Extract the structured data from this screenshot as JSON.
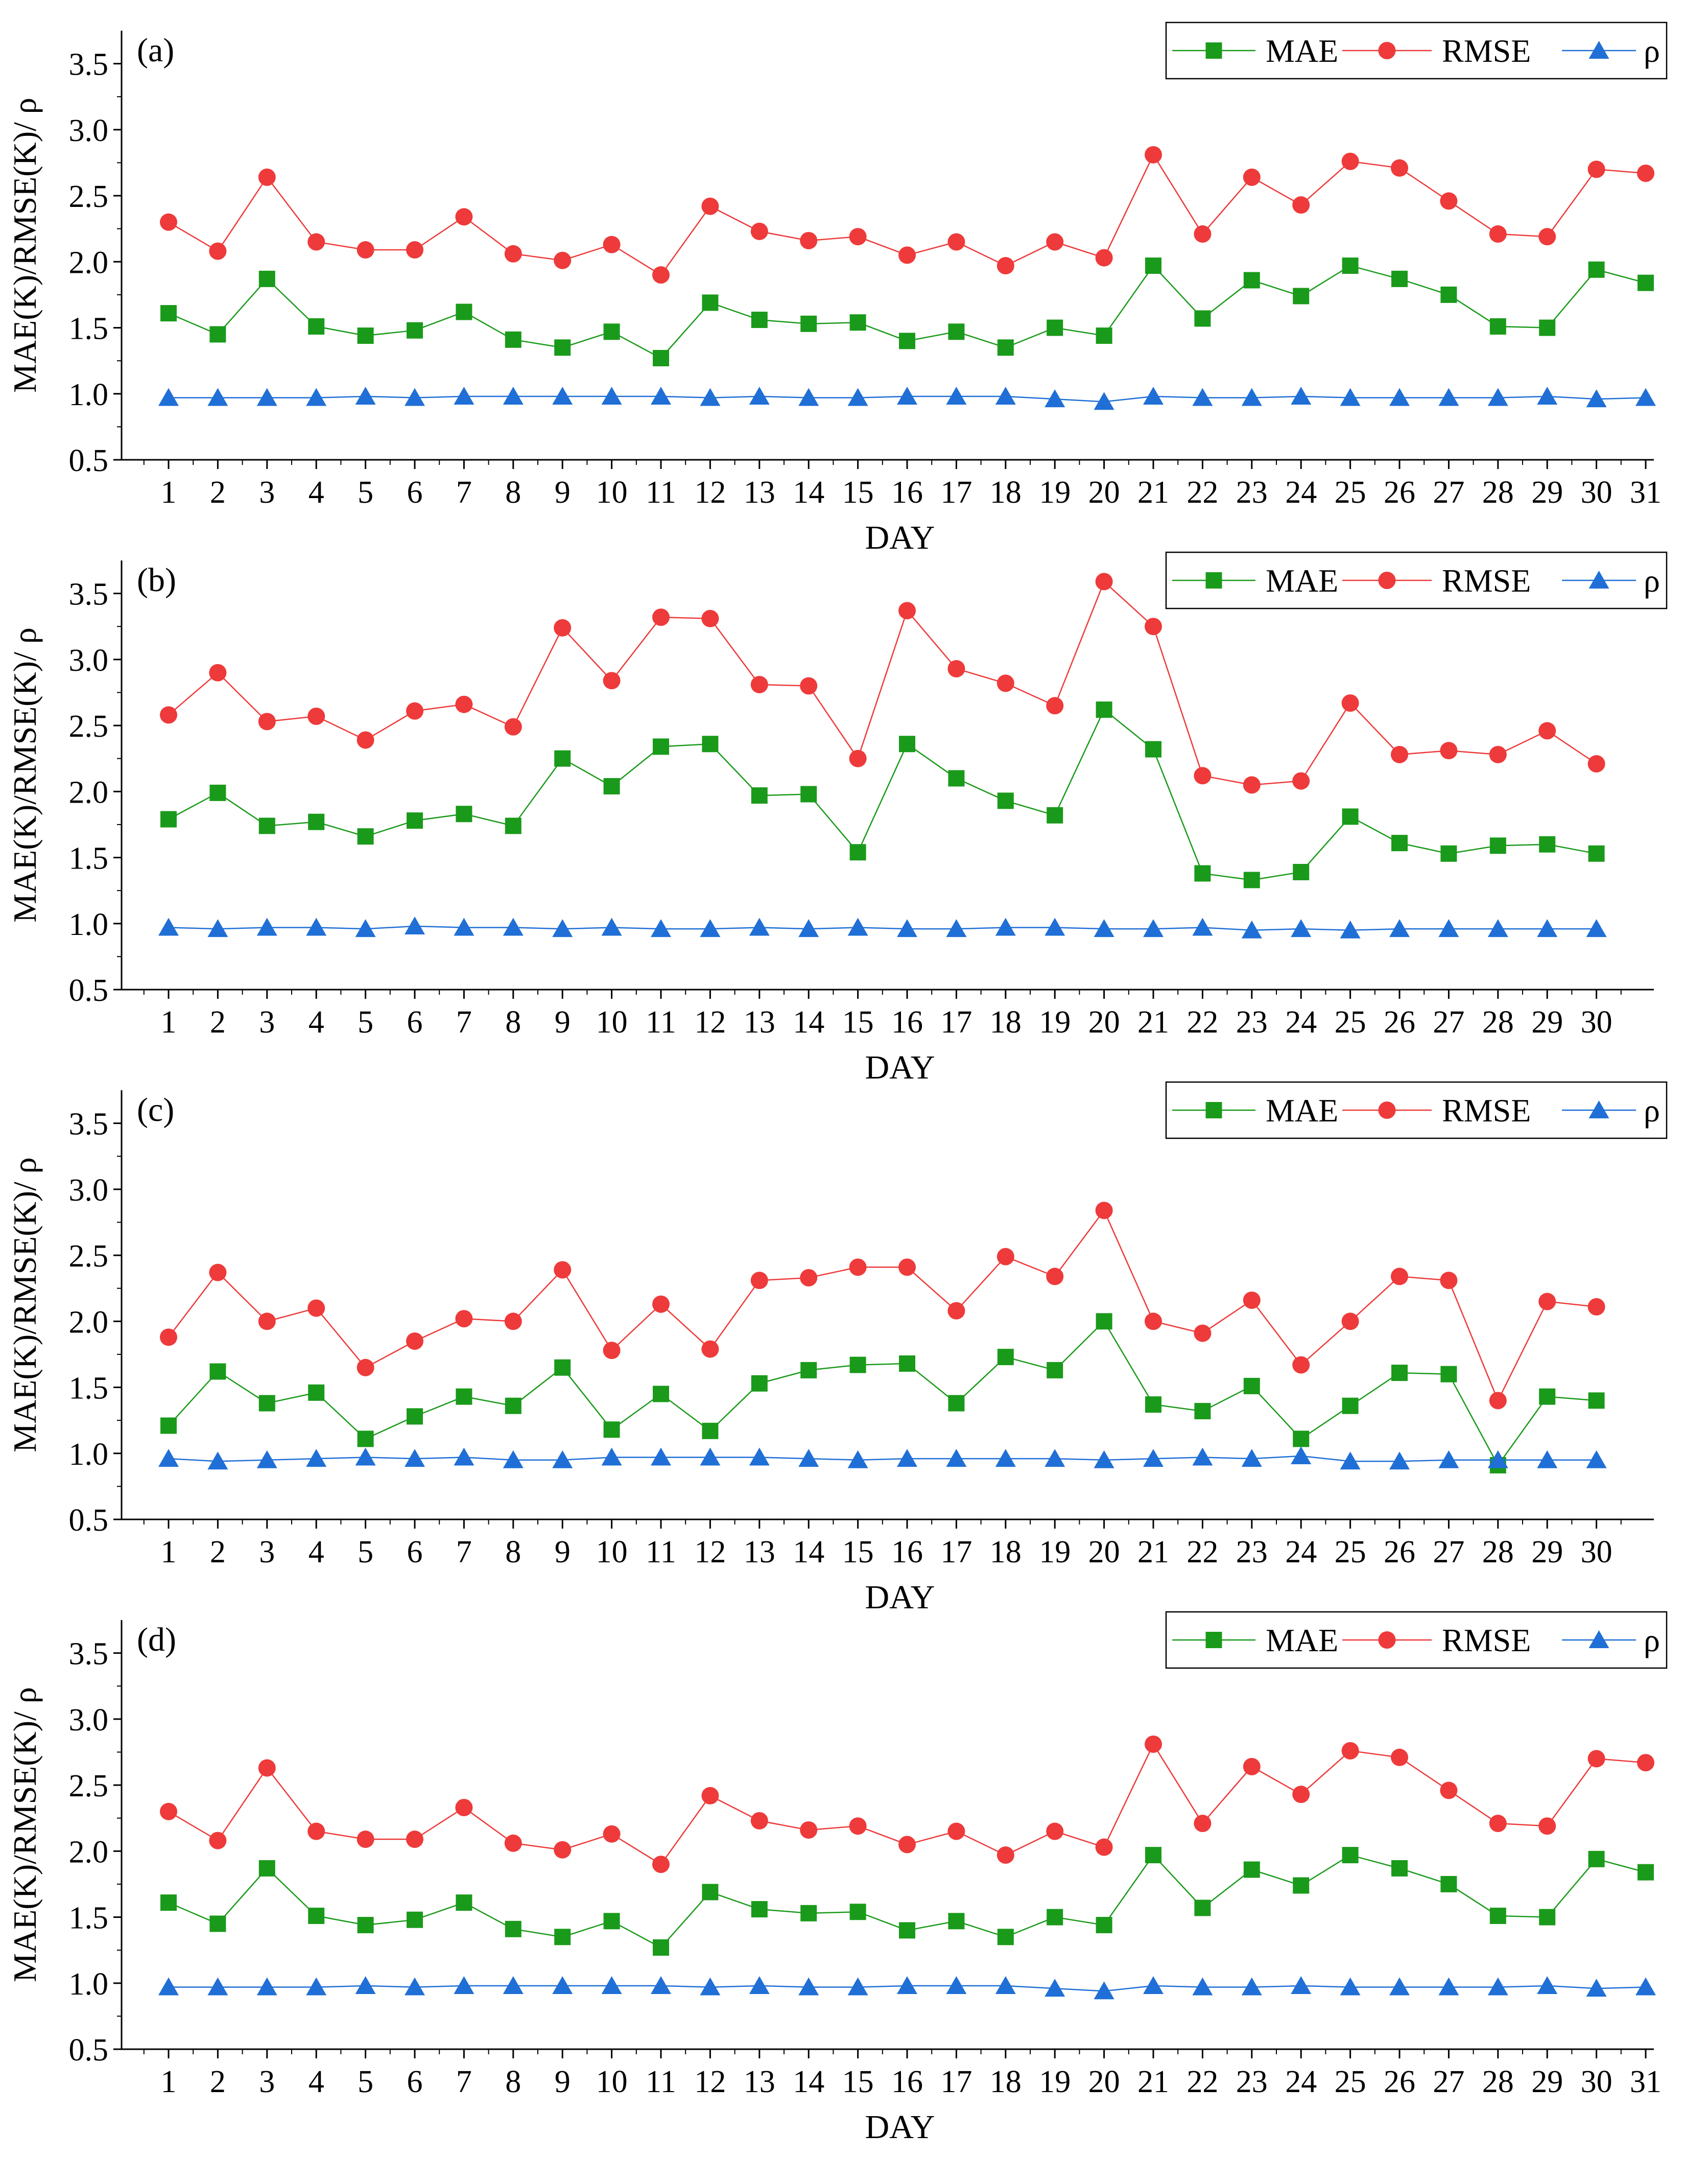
{
  "chart_data": [
    {
      "type": "line",
      "panel_label": "(a)",
      "xlabel": "DAY",
      "ylabel": "MAE(K)/RMSE(K)/ ρ",
      "ylim": [
        0.5,
        3.75
      ],
      "yticks": [
        "0.5",
        "1.0",
        "1.5",
        "2.0",
        "2.5",
        "3.0",
        "3.5"
      ],
      "x": [
        1,
        2,
        3,
        4,
        5,
        6,
        7,
        8,
        9,
        10,
        11,
        12,
        13,
        14,
        15,
        16,
        17,
        18,
        19,
        20,
        21,
        22,
        23,
        24,
        25,
        26,
        27,
        28,
        29,
        30,
        31
      ],
      "series": [
        {
          "name": "MAE",
          "color": "#1a9a1a",
          "marker": "square",
          "values": [
            1.61,
            1.45,
            1.87,
            1.51,
            1.44,
            1.48,
            1.62,
            1.41,
            1.35,
            1.47,
            1.27,
            1.69,
            1.56,
            1.53,
            1.54,
            1.4,
            1.47,
            1.35,
            1.5,
            1.44,
            1.97,
            1.57,
            1.86,
            1.74,
            1.97,
            1.87,
            1.75,
            1.51,
            1.5,
            1.94,
            1.84
          ]
        },
        {
          "name": "RMSE",
          "color": "#ee3a3a",
          "marker": "circle",
          "values": [
            2.3,
            2.08,
            2.64,
            2.15,
            2.09,
            2.09,
            2.34,
            2.06,
            2.01,
            2.13,
            1.9,
            2.42,
            2.23,
            2.16,
            2.19,
            2.05,
            2.15,
            1.97,
            2.15,
            2.03,
            2.81,
            2.21,
            2.64,
            2.43,
            2.76,
            2.71,
            2.46,
            2.21,
            2.19,
            2.7,
            2.67
          ]
        },
        {
          "name": "ρ",
          "color": "#1f6fd6",
          "marker": "triangle",
          "values": [
            0.97,
            0.97,
            0.97,
            0.97,
            0.98,
            0.97,
            0.98,
            0.98,
            0.98,
            0.98,
            0.98,
            0.97,
            0.98,
            0.97,
            0.97,
            0.98,
            0.98,
            0.98,
            0.96,
            0.94,
            0.98,
            0.97,
            0.97,
            0.98,
            0.97,
            0.97,
            0.97,
            0.97,
            0.98,
            0.96,
            0.97
          ]
        }
      ],
      "legend": "top-right"
    },
    {
      "type": "line",
      "panel_label": "(b)",
      "xlabel": "DAY",
      "ylabel": "MAE(K)/RMSE(K)/ ρ",
      "ylim": [
        0.5,
        3.75
      ],
      "yticks": [
        "0.5",
        "1.0",
        "1.5",
        "2.0",
        "2.5",
        "3.0",
        "3.5"
      ],
      "x": [
        1,
        2,
        3,
        4,
        5,
        6,
        7,
        8,
        9,
        10,
        11,
        12,
        13,
        14,
        15,
        16,
        17,
        18,
        19,
        20,
        21,
        22,
        23,
        24,
        25,
        26,
        27,
        28,
        29,
        30
      ],
      "series": [
        {
          "name": "MAE",
          "color": "#1a9a1a",
          "marker": "square",
          "values": [
            1.79,
            1.99,
            1.74,
            1.77,
            1.66,
            1.78,
            1.83,
            1.74,
            2.25,
            2.04,
            2.34,
            2.36,
            1.97,
            1.98,
            1.54,
            2.36,
            2.1,
            1.93,
            1.82,
            2.62,
            2.32,
            1.38,
            1.33,
            1.39,
            1.81,
            1.61,
            1.53,
            1.59,
            1.6,
            1.53
          ]
        },
        {
          "name": "RMSE",
          "color": "#ee3a3a",
          "marker": "circle",
          "values": [
            2.58,
            2.9,
            2.53,
            2.57,
            2.39,
            2.61,
            2.66,
            2.49,
            3.24,
            2.84,
            3.32,
            3.31,
            2.81,
            2.8,
            2.25,
            3.37,
            2.93,
            2.82,
            2.65,
            3.59,
            3.25,
            2.12,
            2.05,
            2.08,
            2.67,
            2.28,
            2.31,
            2.28,
            2.46,
            2.21
          ]
        },
        {
          "name": "ρ",
          "color": "#1f6fd6",
          "marker": "triangle",
          "values": [
            0.97,
            0.96,
            0.97,
            0.97,
            0.96,
            0.98,
            0.97,
            0.97,
            0.96,
            0.97,
            0.96,
            0.96,
            0.97,
            0.96,
            0.97,
            0.96,
            0.96,
            0.97,
            0.97,
            0.96,
            0.96,
            0.97,
            0.95,
            0.96,
            0.95,
            0.96,
            0.96,
            0.96,
            0.96,
            0.96
          ]
        }
      ],
      "legend": "top-right"
    },
    {
      "type": "line",
      "panel_label": "(c)",
      "xlabel": "DAY",
      "ylabel": "MAE(K)/RMSE(K)/ ρ",
      "ylim": [
        0.5,
        3.75
      ],
      "yticks": [
        "0.5",
        "1.0",
        "1.5",
        "2.0",
        "2.5",
        "3.0",
        "3.5"
      ],
      "x": [
        1,
        2,
        3,
        4,
        5,
        6,
        7,
        8,
        9,
        10,
        11,
        12,
        13,
        14,
        15,
        16,
        17,
        18,
        19,
        20,
        21,
        22,
        23,
        24,
        25,
        26,
        27,
        28,
        29,
        30
      ],
      "series": [
        {
          "name": "MAE",
          "color": "#1a9a1a",
          "marker": "square",
          "values": [
            1.21,
            1.62,
            1.38,
            1.46,
            1.11,
            1.28,
            1.43,
            1.36,
            1.65,
            1.18,
            1.45,
            1.17,
            1.53,
            1.63,
            1.67,
            1.68,
            1.38,
            1.73,
            1.63,
            2.0,
            1.37,
            1.32,
            1.51,
            1.11,
            1.36,
            1.61,
            1.6,
            0.91,
            1.43,
            1.4
          ]
        },
        {
          "name": "RMSE",
          "color": "#ee3a3a",
          "marker": "circle",
          "values": [
            1.88,
            2.37,
            2.0,
            2.1,
            1.65,
            1.85,
            2.02,
            2.0,
            2.39,
            1.78,
            2.13,
            1.79,
            2.31,
            2.33,
            2.41,
            2.41,
            2.08,
            2.49,
            2.34,
            2.84,
            2.0,
            1.91,
            2.16,
            1.67,
            2.0,
            2.34,
            2.31,
            1.4,
            2.15,
            2.11
          ]
        },
        {
          "name": "ρ",
          "color": "#1f6fd6",
          "marker": "triangle",
          "values": [
            0.96,
            0.94,
            0.95,
            0.96,
            0.97,
            0.96,
            0.97,
            0.95,
            0.95,
            0.97,
            0.97,
            0.97,
            0.97,
            0.96,
            0.95,
            0.96,
            0.96,
            0.96,
            0.96,
            0.95,
            0.96,
            0.97,
            0.96,
            0.98,
            0.94,
            0.94,
            0.95,
            0.95,
            0.95,
            0.95
          ]
        }
      ],
      "legend": "top-right"
    },
    {
      "type": "line",
      "panel_label": "(d)",
      "xlabel": "DAY",
      "ylabel": "MAE(K)/RMSE(K)/ ρ",
      "ylim": [
        0.5,
        3.75
      ],
      "yticks": [
        "0.5",
        "1.0",
        "1.5",
        "2.0",
        "2.5",
        "3.0",
        "3.5"
      ],
      "x": [
        1,
        2,
        3,
        4,
        5,
        6,
        7,
        8,
        9,
        10,
        11,
        12,
        13,
        14,
        15,
        16,
        17,
        18,
        19,
        20,
        21,
        22,
        23,
        24,
        25,
        26,
        27,
        28,
        29,
        30,
        31
      ],
      "series": [
        {
          "name": "MAE",
          "color": "#1a9a1a",
          "marker": "square",
          "values": [
            1.61,
            1.45,
            1.87,
            1.51,
            1.44,
            1.48,
            1.61,
            1.41,
            1.35,
            1.47,
            1.27,
            1.69,
            1.56,
            1.53,
            1.54,
            1.4,
            1.47,
            1.35,
            1.5,
            1.44,
            1.97,
            1.57,
            1.86,
            1.74,
            1.97,
            1.87,
            1.75,
            1.51,
            1.5,
            1.94,
            1.84
          ]
        },
        {
          "name": "RMSE",
          "color": "#ee3a3a",
          "marker": "circle",
          "values": [
            2.3,
            2.08,
            2.63,
            2.15,
            2.09,
            2.09,
            2.33,
            2.06,
            2.01,
            2.13,
            1.9,
            2.42,
            2.23,
            2.16,
            2.19,
            2.05,
            2.15,
            1.97,
            2.15,
            2.03,
            2.81,
            2.21,
            2.64,
            2.43,
            2.76,
            2.71,
            2.46,
            2.21,
            2.19,
            2.7,
            2.67
          ]
        },
        {
          "name": "ρ",
          "color": "#1f6fd6",
          "marker": "triangle",
          "values": [
            0.97,
            0.97,
            0.97,
            0.97,
            0.98,
            0.97,
            0.98,
            0.98,
            0.98,
            0.98,
            0.98,
            0.97,
            0.98,
            0.97,
            0.97,
            0.98,
            0.98,
            0.98,
            0.96,
            0.94,
            0.98,
            0.97,
            0.97,
            0.98,
            0.97,
            0.97,
            0.97,
            0.97,
            0.98,
            0.96,
            0.97
          ]
        }
      ],
      "legend": "top-right"
    }
  ]
}
